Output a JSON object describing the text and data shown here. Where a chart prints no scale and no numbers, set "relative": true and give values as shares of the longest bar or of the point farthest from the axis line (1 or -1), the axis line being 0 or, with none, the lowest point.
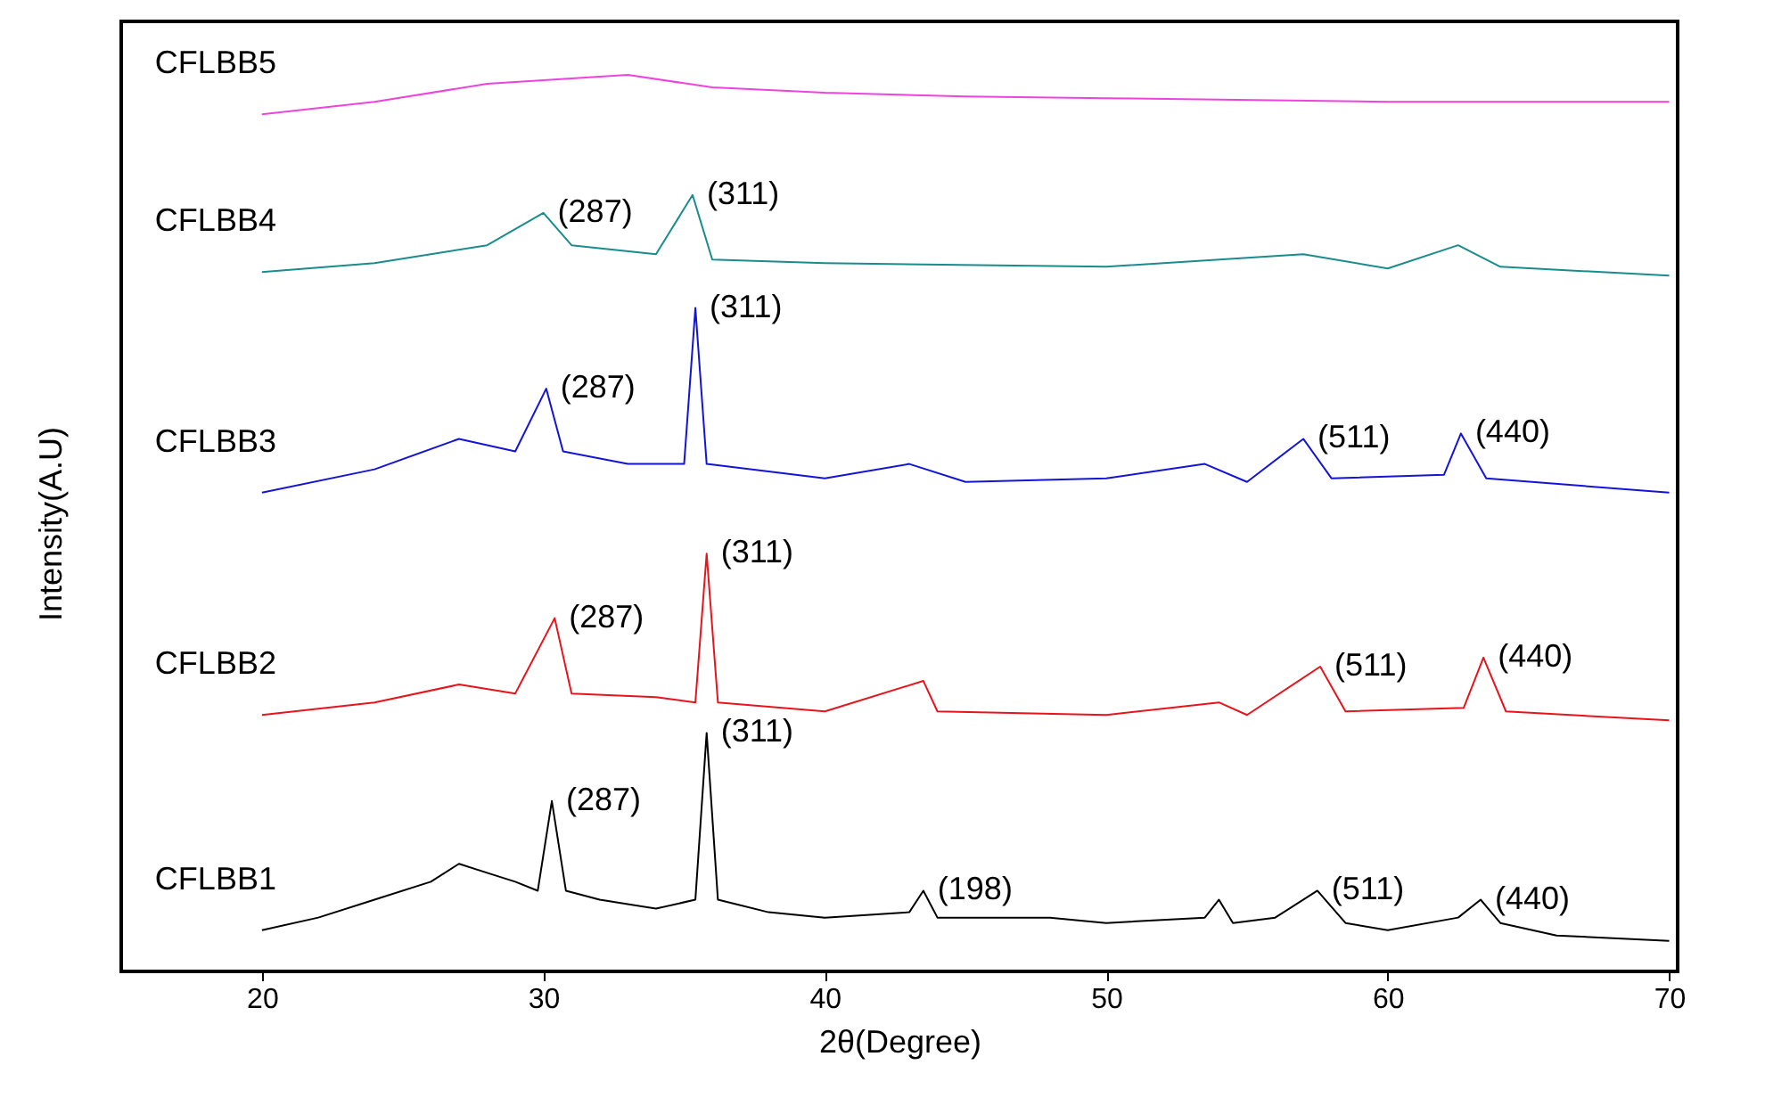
{
  "chart_data": {
    "type": "line",
    "relative": true,
    "xlabel": "2θ(Degree)",
    "ylabel": "Intensity(A.U)",
    "xlim": [
      15,
      70.3
    ],
    "xticks": [
      20,
      30,
      40,
      50,
      60,
      70
    ],
    "tick_labels": "x",
    "grid": false,
    "legend": false,
    "series": [
      {
        "name": "CFLBB1",
        "color": "#000000",
        "x": [
          20,
          22,
          24,
          26,
          27,
          28,
          29,
          29.8,
          30.3,
          30.8,
          32,
          34,
          35.4,
          35.8,
          36.2,
          38,
          40,
          43,
          43.5,
          44,
          48,
          50,
          53.5,
          54,
          54.5,
          56,
          57.5,
          58.5,
          60,
          62.5,
          63.3,
          64,
          66,
          70
        ],
        "values": [
          0.046,
          0.06,
          0.08,
          0.1,
          0.12,
          0.11,
          0.1,
          0.09,
          0.19,
          0.09,
          0.08,
          0.07,
          0.08,
          0.266,
          0.08,
          0.066,
          0.06,
          0.066,
          0.09,
          0.06,
          0.06,
          0.054,
          0.06,
          0.08,
          0.054,
          0.06,
          0.09,
          0.054,
          0.046,
          0.06,
          0.08,
          0.054,
          0.04,
          0.034
        ]
      },
      {
        "name": "CFLBB2",
        "color": "#e8141c",
        "x": [
          20,
          24,
          27,
          29,
          30.4,
          31,
          34,
          35.4,
          35.8,
          36.2,
          40,
          43.5,
          44,
          50,
          54,
          55,
          57.6,
          58.5,
          62.7,
          63.4,
          64.2,
          70
        ],
        "values": [
          0.286,
          0.3,
          0.32,
          0.31,
          0.394,
          0.31,
          0.306,
          0.3,
          0.466,
          0.3,
          0.29,
          0.324,
          0.29,
          0.286,
          0.3,
          0.286,
          0.34,
          0.29,
          0.294,
          0.35,
          0.29,
          0.28
        ]
      },
      {
        "name": "CFLBB3",
        "color": "#1414d8",
        "x": [
          20,
          24,
          27,
          29,
          30.1,
          30.7,
          33,
          35,
          35.4,
          35.8,
          40,
          43,
          45,
          50,
          53.5,
          55,
          57,
          58,
          62,
          62.6,
          63.5,
          70
        ],
        "values": [
          0.534,
          0.56,
          0.594,
          0.58,
          0.65,
          0.58,
          0.566,
          0.566,
          0.74,
          0.566,
          0.55,
          0.566,
          0.546,
          0.55,
          0.566,
          0.546,
          0.594,
          0.55,
          0.554,
          0.6,
          0.55,
          0.534
        ]
      },
      {
        "name": "CFLBB4",
        "color": "#1a8c8c",
        "x": [
          20,
          24,
          28,
          30,
          31,
          34,
          35.3,
          36,
          40,
          50,
          57,
          60,
          62.5,
          64,
          70
        ],
        "values": [
          0.78,
          0.79,
          0.81,
          0.846,
          0.81,
          0.8,
          0.866,
          0.794,
          0.79,
          0.786,
          0.8,
          0.784,
          0.81,
          0.786,
          0.776
        ]
      },
      {
        "name": "CFLBB5",
        "color": "#ee44dd",
        "x": [
          20,
          24,
          28,
          30,
          33,
          36,
          40,
          45,
          50,
          60,
          70
        ],
        "values": [
          0.956,
          0.97,
          0.99,
          0.994,
          1.0,
          0.986,
          0.98,
          0.976,
          0.974,
          0.97,
          0.97
        ]
      }
    ],
    "annotations": [
      {
        "text": "(287)",
        "x": 30.3,
        "y": 0.19
      },
      {
        "text": "(311)",
        "x": 35.8,
        "y": 0.266
      },
      {
        "text": "(198)",
        "x": 43.5,
        "y": 0.09
      },
      {
        "text": "(511)",
        "x": 57.5,
        "y": 0.09
      },
      {
        "text": "(440)",
        "x": 63.3,
        "y": 0.08
      },
      {
        "text": "(287)",
        "x": 30.4,
        "y": 0.394
      },
      {
        "text": "(311)",
        "x": 35.8,
        "y": 0.466
      },
      {
        "text": "(511)",
        "x": 57.6,
        "y": 0.34
      },
      {
        "text": "(440)",
        "x": 63.4,
        "y": 0.35
      },
      {
        "text": "(287)",
        "x": 30.1,
        "y": 0.65
      },
      {
        "text": "(311)",
        "x": 35.4,
        "y": 0.74
      },
      {
        "text": "(511)",
        "x": 57,
        "y": 0.594
      },
      {
        "text": "(440)",
        "x": 62.6,
        "y": 0.6
      },
      {
        "text": "(287)",
        "x": 30,
        "y": 0.846
      },
      {
        "text": "(311)",
        "x": 35.3,
        "y": 0.866
      }
    ]
  }
}
